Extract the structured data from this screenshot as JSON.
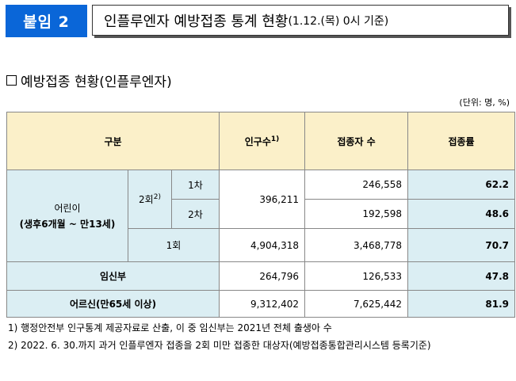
{
  "header": {
    "badge": "붙임 2",
    "title_main": "인플루엔자 예방접종 통계 현황",
    "title_sub": "(1.12.(목) 0시 기준)"
  },
  "section": {
    "title": "예방접종 현황(인플루엔자)"
  },
  "unit": "(단위: 명, %)",
  "table": {
    "headers": {
      "category": "구분",
      "population": "인구수",
      "population_sup": "1)",
      "vaccinated": "접종자 수",
      "rate": "접종률"
    },
    "children": {
      "label1": "어린이",
      "label2": "(생후6개월 ~ 만13세)",
      "two_dose": {
        "label": "2회",
        "sup": "2)",
        "population": "396,211",
        "first": {
          "label": "1차",
          "vaccinated": "246,558",
          "rate": "62.2"
        },
        "second": {
          "label": "2차",
          "vaccinated": "192,598",
          "rate": "48.6"
        }
      },
      "one_dose": {
        "label": "1회",
        "population": "4,904,318",
        "vaccinated": "3,468,778",
        "rate": "70.7"
      }
    },
    "pregnant": {
      "label": "임신부",
      "population": "264,796",
      "vaccinated": "126,533",
      "rate": "47.8"
    },
    "elderly": {
      "label": "어르신(만65세 이상)",
      "population": "9,312,402",
      "vaccinated": "7,625,442",
      "rate": "81.9"
    }
  },
  "footnotes": [
    "1) 행정안전부 인구통계 제공자료로 산출, 이 중 임신부는 2021년 전체 출생아 수",
    "2) 2022. 6. 30.까지 과거 인플루엔자 접종을 2회 미만 접종한 대상자(예방접종통합관리시스템 등록기준)"
  ]
}
